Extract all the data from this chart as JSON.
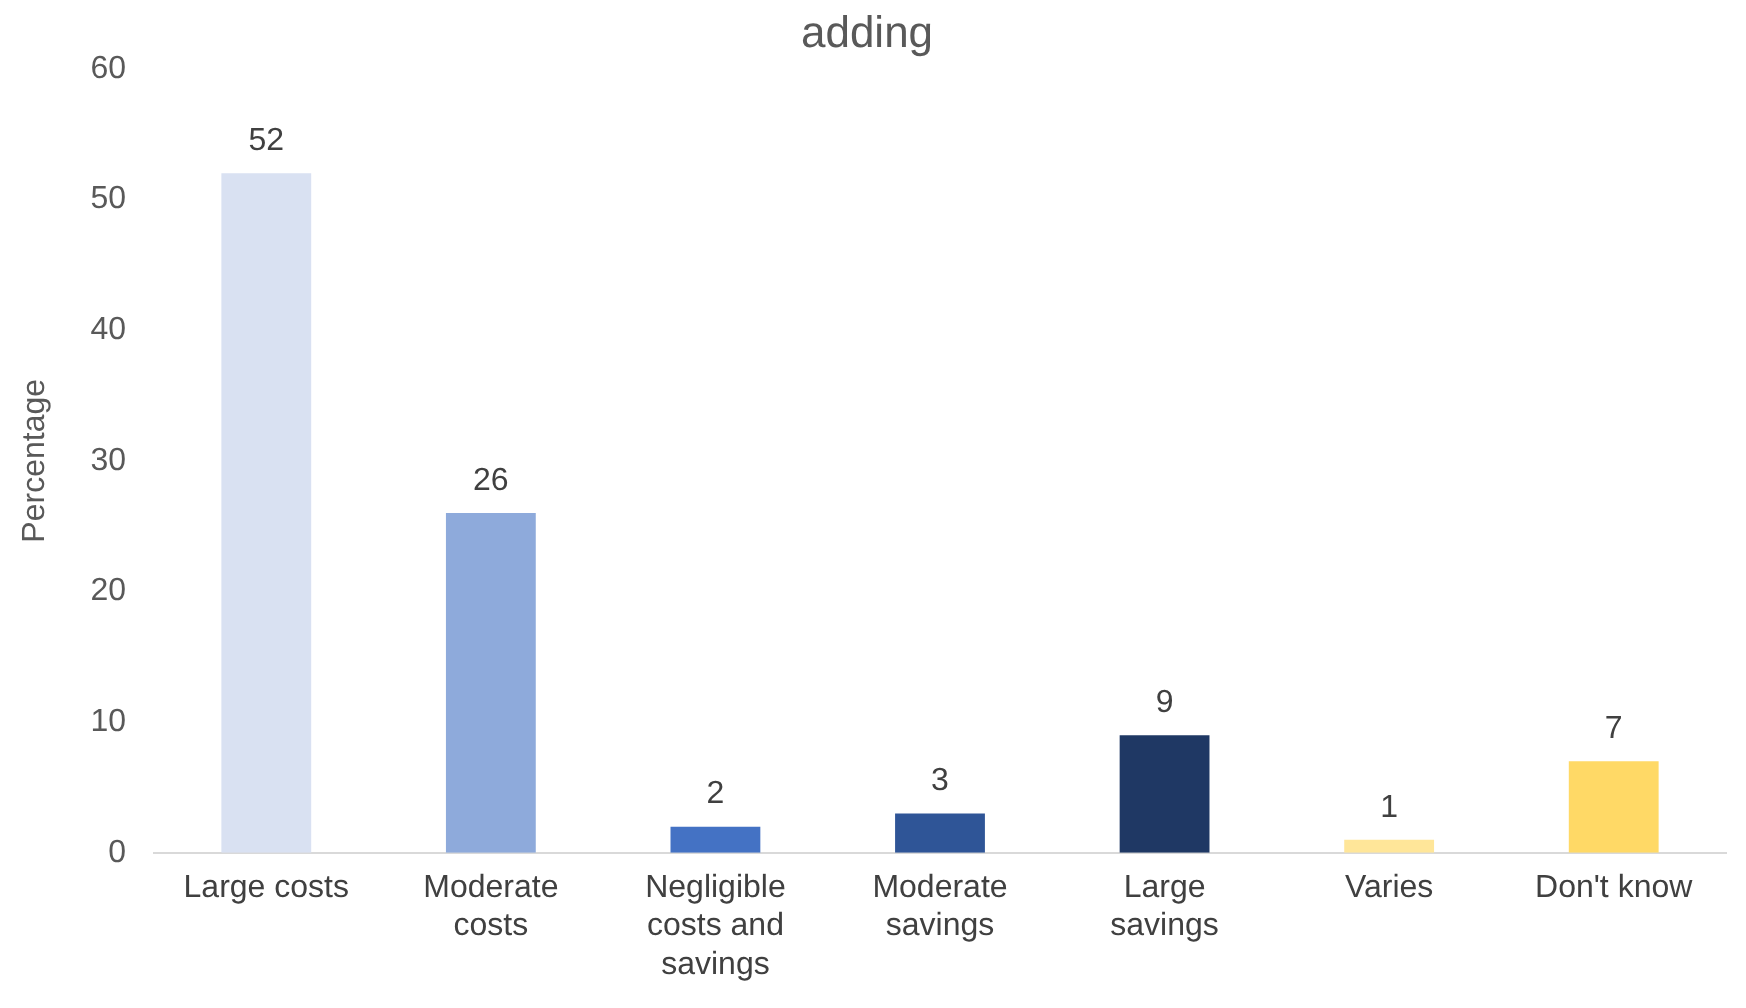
{
  "chart_data": {
    "type": "bar",
    "title": "adding",
    "ylabel": "Percentage",
    "categories": [
      "Large costs",
      "Moderate costs",
      "Negligible costs and savings",
      "Moderate savings",
      "Large savings",
      "Varies",
      "Don't know"
    ],
    "values": [
      52,
      26,
      2,
      3,
      9,
      1,
      7
    ],
    "colors": [
      "#d9e1f2",
      "#8eaadb",
      "#4472c4",
      "#2f5597",
      "#1f3864",
      "#ffe699",
      "#ffd966"
    ],
    "ylim": [
      0,
      60
    ],
    "yticks": [
      0,
      10,
      20,
      30,
      40,
      50,
      60
    ],
    "grid": false,
    "data_labels": true
  }
}
